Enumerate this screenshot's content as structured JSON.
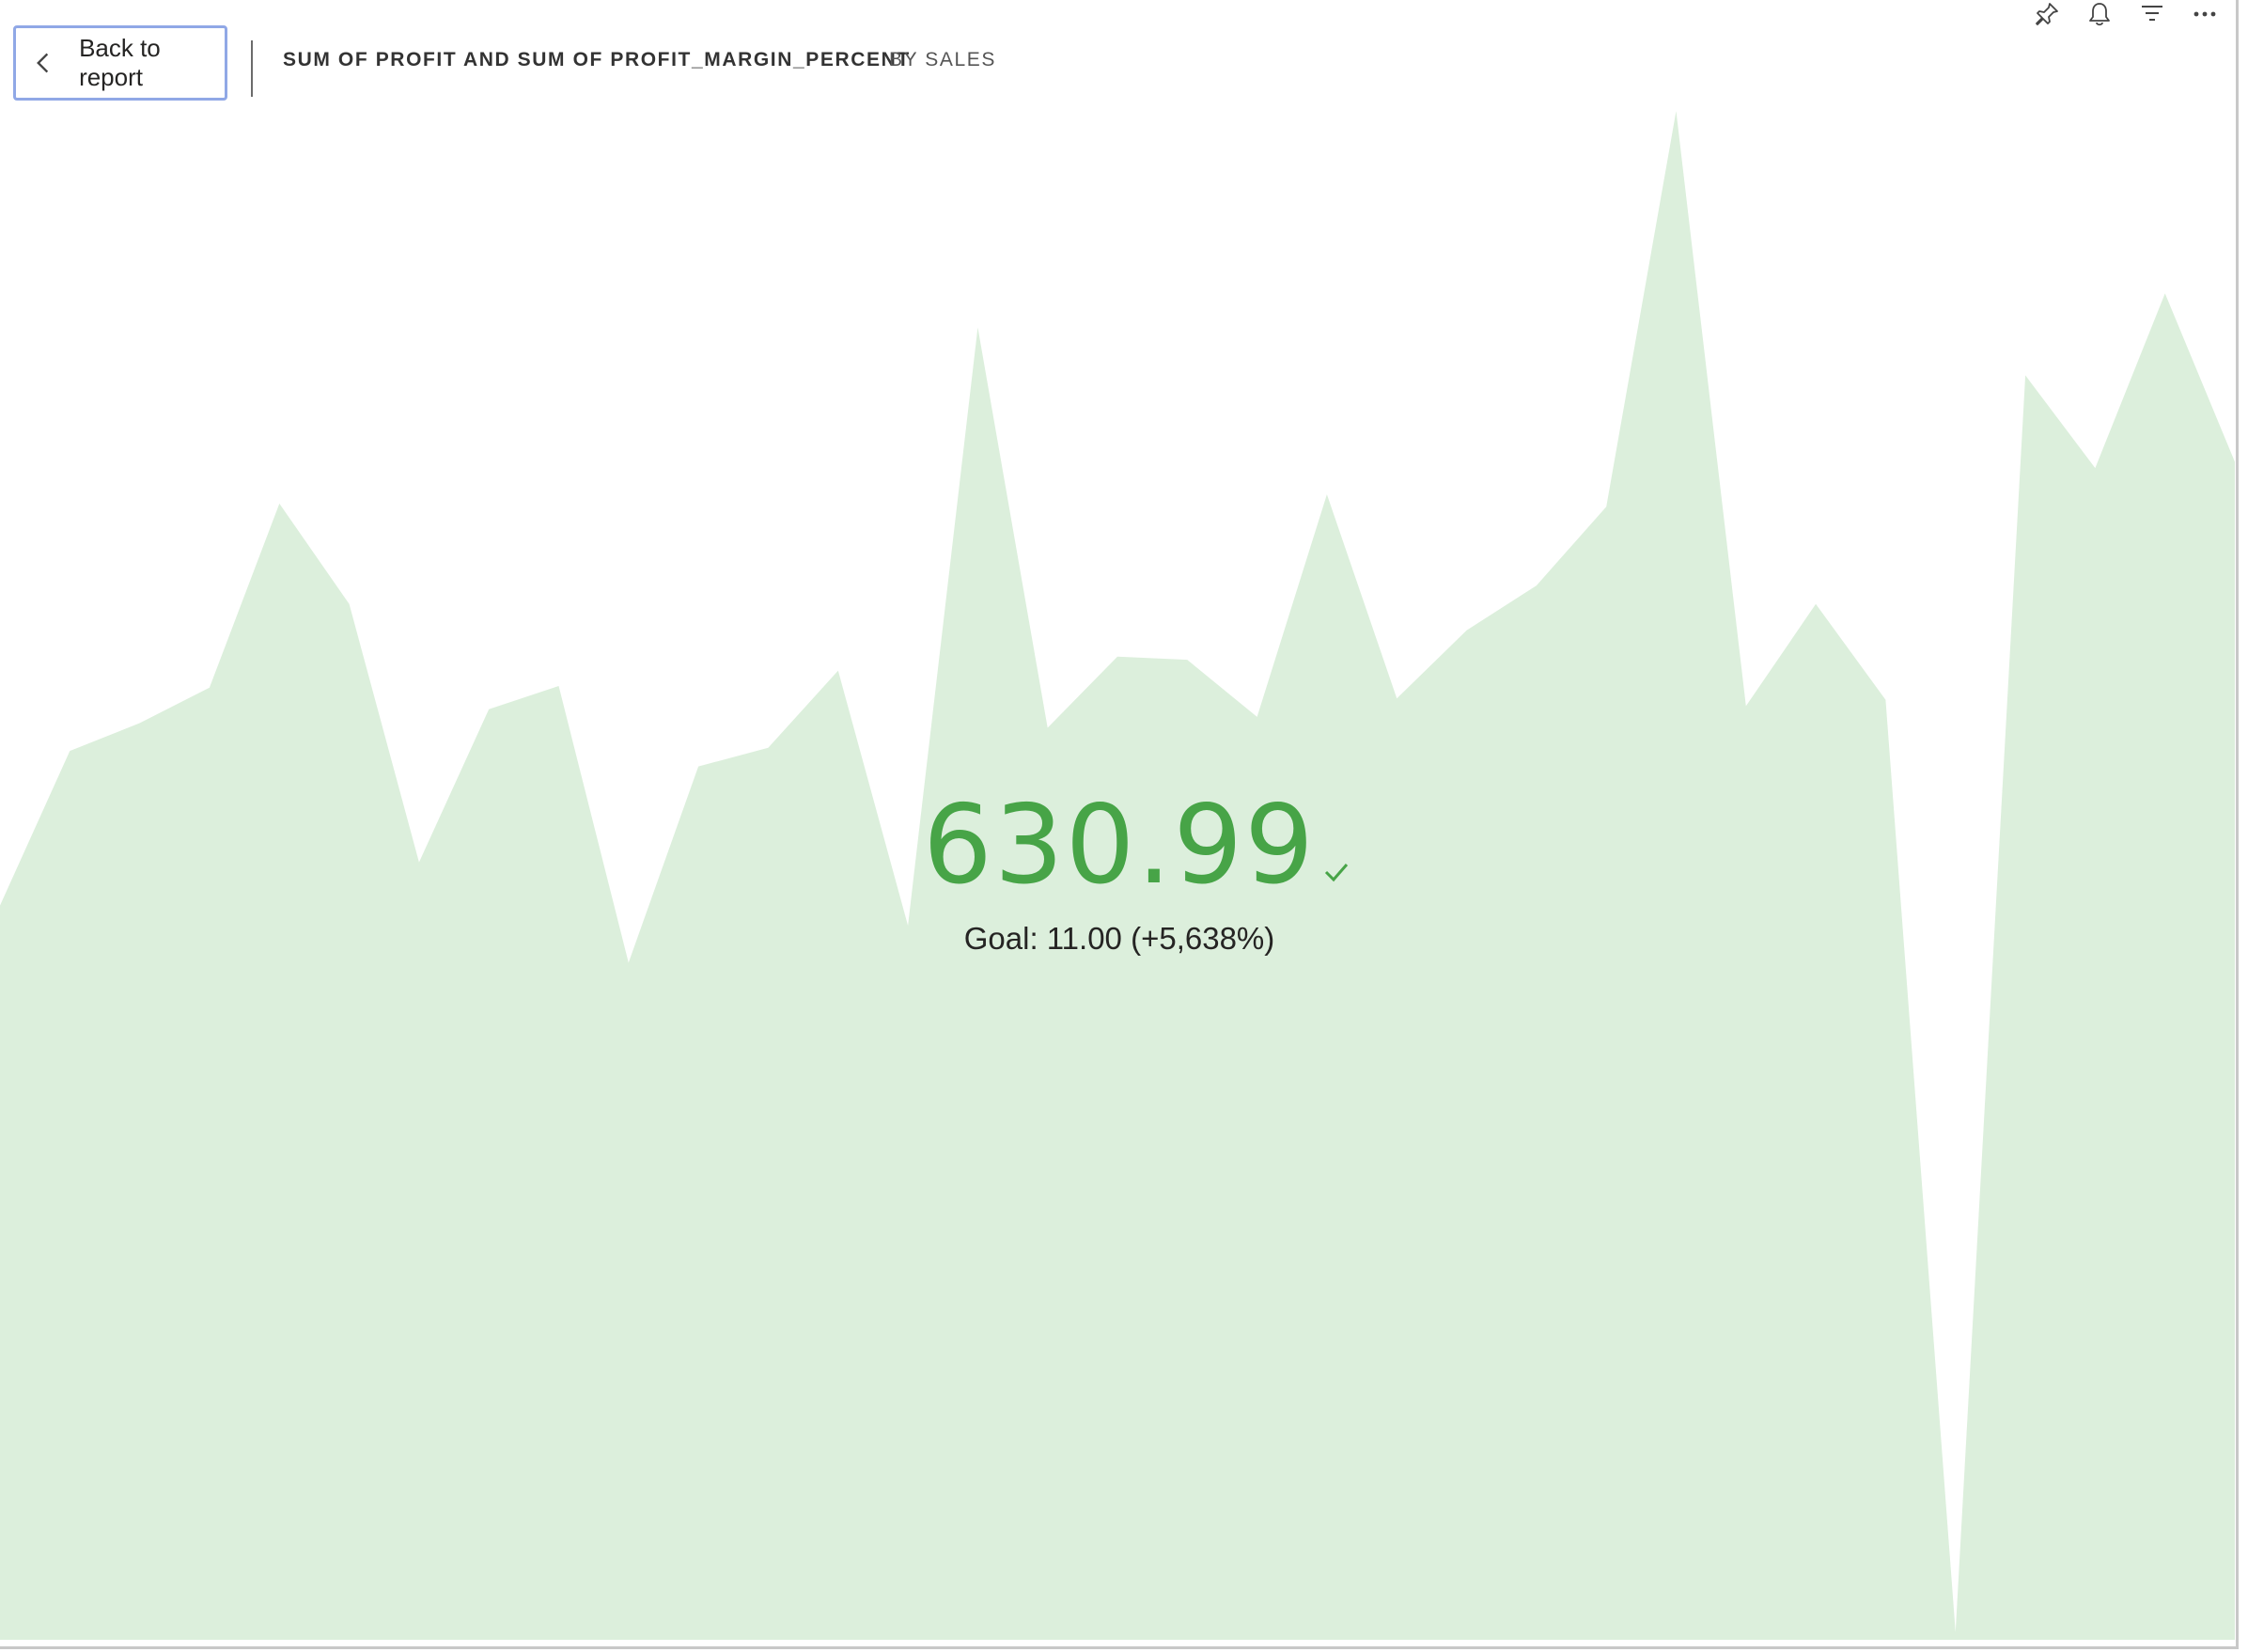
{
  "header": {
    "back_label": "Back to report",
    "title": "SUM OF PROFIT AND SUM OF PROFIT_MARGIN_PERCENT",
    "subtitle": "BY SALES"
  },
  "toolbar": {
    "icons": [
      "pin-icon",
      "bell-icon",
      "filter-icon",
      "more-icon"
    ]
  },
  "kpi": {
    "value": "630.99",
    "goal_text": "Goal: 11.00 (+5,638%)",
    "status": "above-goal",
    "color": "#47a447"
  },
  "chart_data": {
    "type": "area",
    "title": "SUM OF PROFIT AND SUM OF PROFIT_MARGIN_PERCENT",
    "subtitle": "BY SALES",
    "fill_color": "#dcefdc",
    "ylim": [
      0,
      1
    ],
    "values": [
      0.475,
      0.575,
      0.593,
      0.616,
      0.735,
      0.67,
      0.503,
      0.602,
      0.617,
      0.438,
      0.565,
      0.577,
      0.627,
      0.462,
      0.849,
      0.59,
      0.636,
      0.634,
      0.597,
      0.741,
      0.609,
      0.653,
      0.682,
      0.733,
      0.989,
      0.604,
      0.67,
      0.608,
      0.005,
      0.818,
      0.758,
      0.871,
      0.762
    ]
  }
}
